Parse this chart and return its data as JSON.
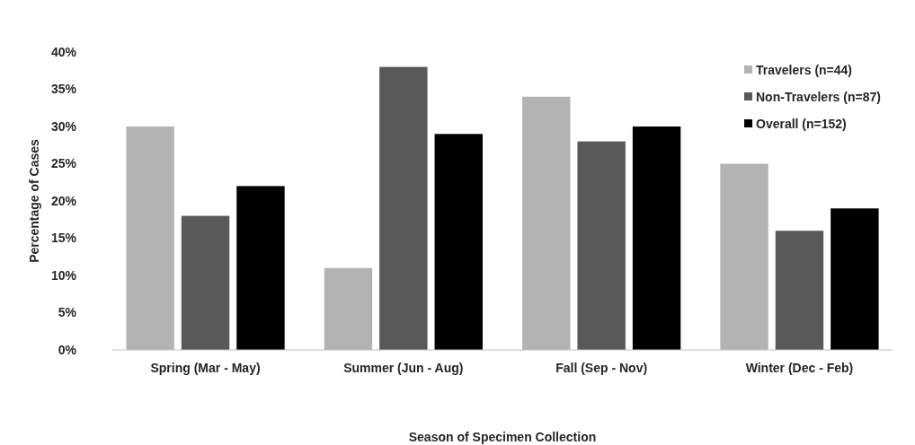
{
  "chart_data": {
    "type": "bar",
    "xlabel": "Season of Specimen Collection",
    "ylabel": "Percentage of Cases",
    "categories": [
      "Spring (Mar - May)",
      "Summer (Jun - Aug)",
      "Fall (Sep - Nov)",
      "Winter (Dec - Feb)"
    ],
    "series": [
      {
        "name": "Travelers (n=44)",
        "color": "#b3b3b3",
        "values": [
          30,
          11,
          34,
          25
        ]
      },
      {
        "name": "Non-Travelers (n=87)",
        "color": "#595959",
        "values": [
          18,
          38,
          28,
          16
        ]
      },
      {
        "name": "Overall (n=152)",
        "color": "#000000",
        "values": [
          22,
          29,
          30,
          19
        ]
      }
    ],
    "ylim": [
      0,
      40
    ],
    "yticks": [
      {
        "value": 0,
        "label": "0%"
      },
      {
        "value": 5,
        "label": "5%"
      },
      {
        "value": 10,
        "label": "10%"
      },
      {
        "value": 15,
        "label": "15%"
      },
      {
        "value": 20,
        "label": "20%"
      },
      {
        "value": 25,
        "label": "25%"
      },
      {
        "value": 30,
        "label": "30%"
      },
      {
        "value": 35,
        "label": "35%"
      },
      {
        "value": 40,
        "label": "40%"
      }
    ],
    "grid": false,
    "legend": "top right"
  }
}
